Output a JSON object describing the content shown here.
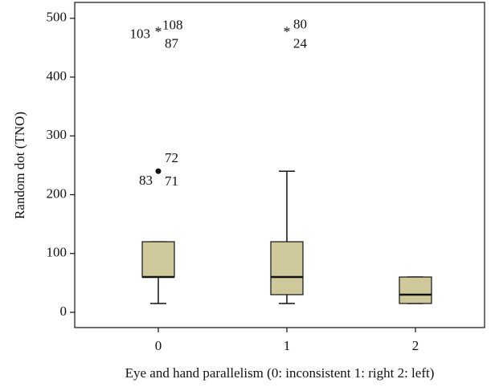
{
  "chart_data": {
    "type": "box",
    "y_label": "Random dot (TNO)",
    "x_label": "Eye and hand parallelism (0: inconsistent 1: right 2: left)",
    "categories": [
      "0",
      "1",
      "2"
    ],
    "color": "#cfc89a",
    "ylim": [
      -26,
      527
    ],
    "yticks": [
      0,
      100,
      200,
      300,
      400,
      500
    ],
    "boxes": [
      {
        "min": 15,
        "q1": 60,
        "median": 60,
        "q3": 120,
        "max": 120,
        "outliers": [
          {
            "value": 240,
            "marker": "circle",
            "labels": [
              "72",
              "83",
              "71"
            ]
          },
          {
            "value": 480,
            "marker": "asterisk",
            "labels": [
              "103",
              "108",
              "87"
            ]
          }
        ]
      },
      {
        "min": 15,
        "q1": 30,
        "median": 60,
        "q3": 120,
        "max": 240,
        "outliers": [
          {
            "value": 480,
            "marker": "asterisk",
            "labels": [
              "80",
              "24"
            ]
          }
        ]
      },
      {
        "min": 15,
        "q1": 15,
        "median": 30,
        "q3": 60,
        "max": 60,
        "outliers": []
      }
    ]
  }
}
